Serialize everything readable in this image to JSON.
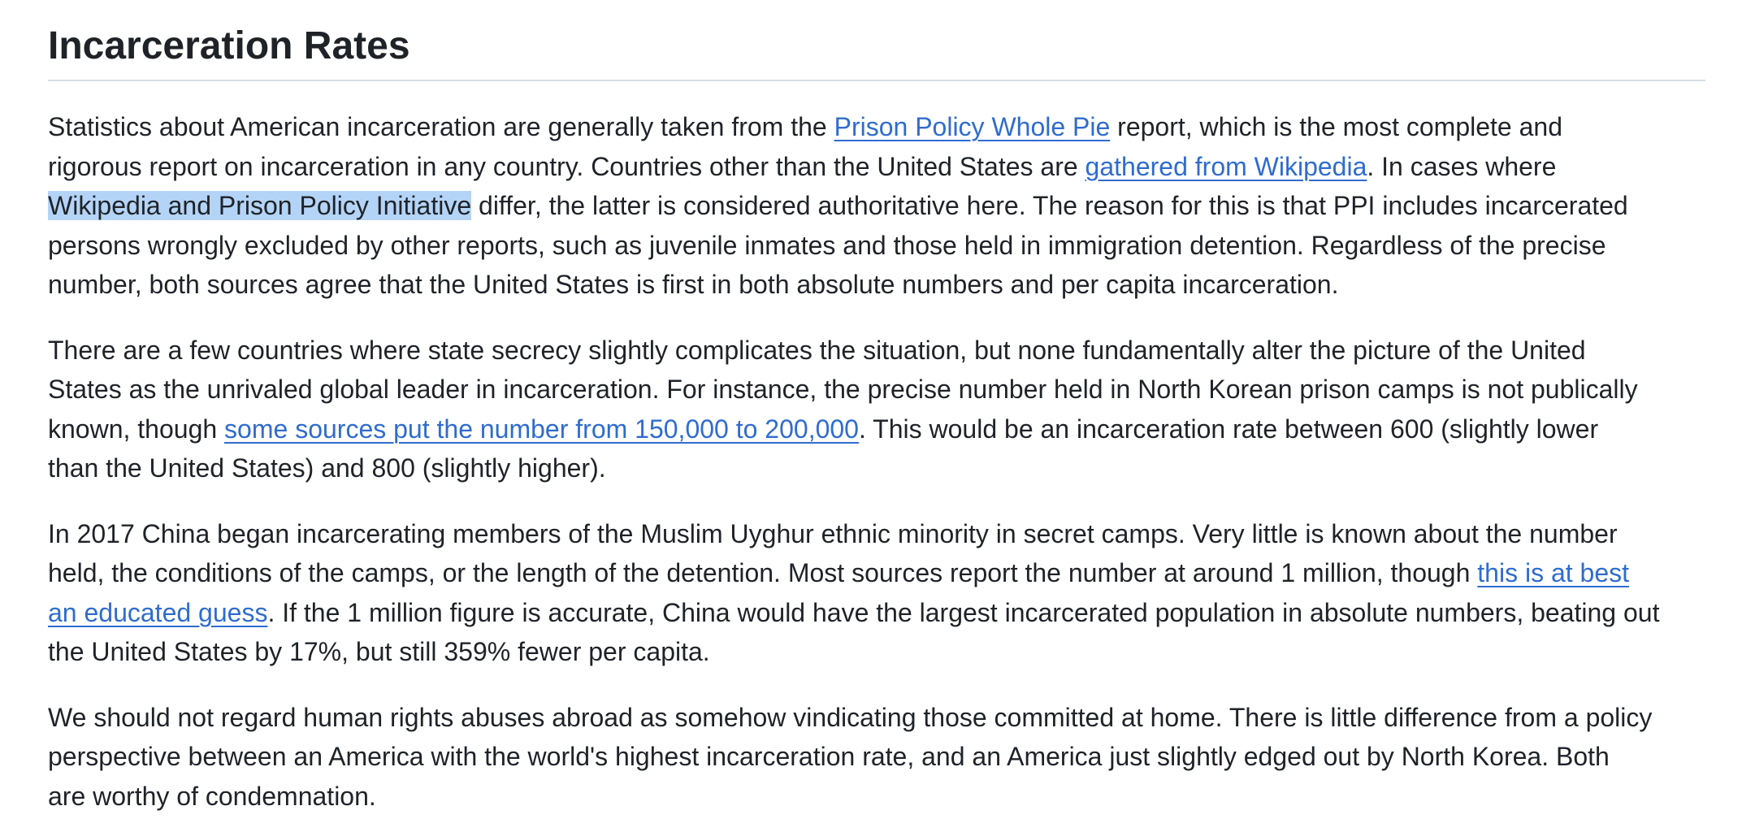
{
  "heading": "Incarceration Rates",
  "p1": {
    "l1a": "Statistics about American incarceration are generally taken from the ",
    "link_whole_pie": "Prison Policy Whole Pie",
    "l1b": " report, which is the most complete and",
    "l2a": "rigorous report on incarceration in any country. Countries other than the United States are ",
    "link_wikipedia": "gathered from Wikipedia",
    "l2b": ". In cases where",
    "l3_selected": "Wikipedia and Prison Policy Initiative",
    "l3b": " differ, the latter is considered authoritative here. The reason for this is that PPI includes incarcerated",
    "l4": "persons wrongly excluded by other reports, such as juvenile inmates and those held in immigration detention. Regardless of the precise",
    "l5": "number, both sources agree that the United States is first in both absolute numbers and per capita incarceration."
  },
  "p2": {
    "l1": "There are a few countries where state secrecy slightly complicates the situation, but none fundamentally alter the picture of the United",
    "l2": "States as the unrivaled global leader in incarceration. For instance, the precise number held in North Korean prison camps is not publically",
    "l3a": "known, though ",
    "link_sources": "some sources put the number from 150,000 to 200,000",
    "l3b": ". This would be an incarceration rate between 600 (slightly lower",
    "l4": "than the United States) and 800 (slightly higher)."
  },
  "p3": {
    "l1": "In 2017 China began incarcerating members of the Muslim Uyghur ethnic minority in secret camps. Very little is known about the number",
    "l2a": "held, the conditions of the camps, or the length of the detention. Most sources report the number at around 1 million, though ",
    "link_guess_1": "this is at best",
    "link_guess_2": "an educated guess",
    "l3b": ". If the 1 million figure is accurate, China would have the largest incarcerated population in absolute numbers, beating out",
    "l4": "the United States by 17%, but still 359% fewer per capita."
  },
  "p4": {
    "l1": "We should not regard human rights abuses abroad as somehow vindicating those committed at home. There is little difference from a policy",
    "l2": "perspective between an America with the world's highest incarceration rate, and an America just slightly edged out by North Korea. Both",
    "l3": "are worthy of condemnation."
  },
  "colors": {
    "text": "#1f2328",
    "link": "#2f6ccf",
    "selection": "#b4d4f7",
    "rule": "#d8dee4"
  }
}
